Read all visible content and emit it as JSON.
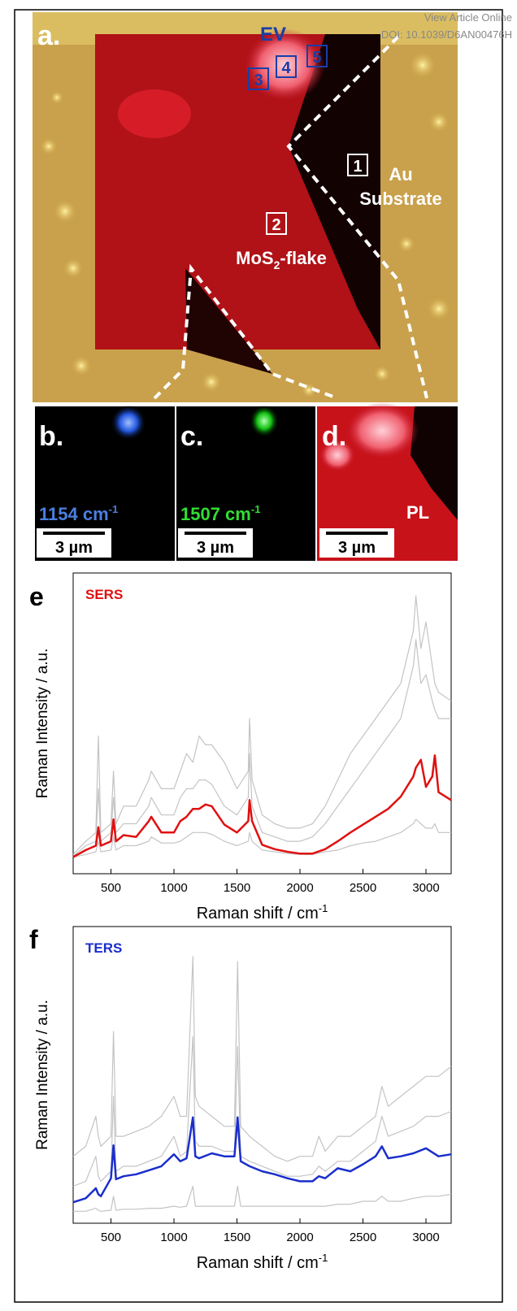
{
  "header": {
    "link": "View Article Online",
    "doi": "DOI: 10.1039/D6AN00476H"
  },
  "panel_a": {
    "label": "a.",
    "ev": "EV",
    "boxes": [
      "1",
      "2",
      "3",
      "4",
      "5"
    ],
    "au": "Au",
    "substrate": "Substrate",
    "flake": [
      "MoS",
      "2",
      "-flake"
    ]
  },
  "panels": [
    {
      "label": "b.",
      "band": "1154 cm",
      "sup": "-1",
      "scale": "3 µm"
    },
    {
      "label": "c.",
      "band": "1507 cm",
      "sup": "-1",
      "scale": "3 µm"
    },
    {
      "label": "d.",
      "band": "PL",
      "scale": "3 µm"
    }
  ],
  "chart_data": [
    {
      "type": "line",
      "panel": "e",
      "label": "SERS",
      "label_color": "#e01010",
      "ylabel": "Raman Intensity / a.u.",
      "xlabel": "Raman shift / cm",
      "xlabel_sup": "-1",
      "xlim": [
        200,
        3200
      ],
      "ylim": [
        -0.17,
        3.26
      ],
      "xticks": [
        500,
        1000,
        1500,
        2000,
        2500,
        3000
      ],
      "x": [
        200,
        300,
        380,
        400,
        420,
        500,
        520,
        540,
        600,
        700,
        800,
        820,
        900,
        1000,
        1050,
        1100,
        1150,
        1200,
        1250,
        1300,
        1400,
        1500,
        1590,
        1600,
        1620,
        1700,
        1800,
        1900,
        2000,
        2100,
        2200,
        2300,
        2400,
        2500,
        2600,
        2700,
        2800,
        2900,
        2920,
        2960,
        3000,
        3050,
        3070,
        3100,
        3200
      ],
      "series": [
        {
          "color": "#c4c4c4",
          "values": [
            0.05,
            0.2,
            0.3,
            1.4,
            0.3,
            0.4,
            1.0,
            0.4,
            0.6,
            0.6,
            0.9,
            1.0,
            0.8,
            0.8,
            1.0,
            1.2,
            1.1,
            1.4,
            1.3,
            1.3,
            1.1,
            0.8,
            1.0,
            1.6,
            0.9,
            0.5,
            0.4,
            0.35,
            0.35,
            0.4,
            0.6,
            0.9,
            1.2,
            1.4,
            1.6,
            1.8,
            2.0,
            2.6,
            3.0,
            2.4,
            2.7,
            2.2,
            2.0,
            1.9,
            1.8
          ]
        },
        {
          "color": "#c4c4c4",
          "values": [
            0.03,
            0.15,
            0.2,
            0.8,
            0.2,
            0.3,
            0.7,
            0.3,
            0.4,
            0.4,
            0.6,
            0.7,
            0.5,
            0.5,
            0.7,
            0.8,
            0.8,
            0.9,
            0.9,
            0.85,
            0.6,
            0.5,
            0.7,
            1.2,
            0.6,
            0.3,
            0.25,
            0.2,
            0.2,
            0.25,
            0.4,
            0.6,
            0.8,
            1.0,
            1.2,
            1.4,
            1.6,
            2.2,
            2.5,
            2.0,
            2.1,
            1.8,
            1.7,
            1.6,
            1.6
          ]
        },
        {
          "color": "#c4c4c4",
          "values": [
            0.02,
            0.05,
            0.08,
            0.2,
            0.08,
            0.1,
            0.25,
            0.1,
            0.15,
            0.15,
            0.2,
            0.25,
            0.18,
            0.18,
            0.2,
            0.25,
            0.3,
            0.3,
            0.3,
            0.28,
            0.2,
            0.15,
            0.2,
            0.3,
            0.2,
            0.1,
            0.08,
            0.06,
            0.05,
            0.05,
            0.08,
            0.1,
            0.15,
            0.18,
            0.2,
            0.25,
            0.3,
            0.4,
            0.45,
            0.4,
            0.35,
            0.35,
            0.4,
            0.3,
            0.3
          ]
        },
        {
          "color": "#e01010",
          "values": [
            0.02,
            0.1,
            0.15,
            0.36,
            0.15,
            0.2,
            0.45,
            0.2,
            0.27,
            0.25,
            0.43,
            0.48,
            0.3,
            0.3,
            0.43,
            0.48,
            0.57,
            0.57,
            0.62,
            0.6,
            0.39,
            0.3,
            0.43,
            0.67,
            0.43,
            0.16,
            0.11,
            0.08,
            0.06,
            0.06,
            0.11,
            0.2,
            0.3,
            0.39,
            0.48,
            0.57,
            0.71,
            0.94,
            1.04,
            1.13,
            0.82,
            0.94,
            1.18,
            0.76,
            0.67
          ]
        }
      ]
    },
    {
      "type": "line",
      "panel": "f",
      "label": "TERS",
      "label_color": "#1a2ecc",
      "ylabel": "Raman Intensity / a.u.",
      "xlabel": "Raman shift / cm",
      "xlabel_sup": "-1",
      "xlim": [
        200,
        3200
      ],
      "ylim": [
        -0.07,
        2.9
      ],
      "xticks": [
        500,
        1000,
        1500,
        2000,
        2500,
        3000
      ],
      "x": [
        200,
        300,
        380,
        400,
        420,
        500,
        520,
        540,
        600,
        700,
        800,
        900,
        1000,
        1050,
        1100,
        1150,
        1170,
        1200,
        1300,
        1400,
        1480,
        1505,
        1530,
        1600,
        1700,
        1800,
        1900,
        2000,
        2100,
        2150,
        2200,
        2300,
        2400,
        2500,
        2600,
        2650,
        2700,
        2800,
        2900,
        3000,
        3100,
        3200
      ],
      "series": [
        {
          "color": "#c4c4c4",
          "values": [
            0.6,
            0.7,
            1.0,
            0.8,
            0.7,
            0.8,
            1.85,
            0.8,
            0.8,
            0.85,
            0.9,
            1.0,
            1.2,
            1.0,
            1.0,
            2.6,
            1.2,
            1.1,
            1.0,
            0.9,
            0.9,
            2.55,
            0.9,
            0.8,
            0.7,
            0.6,
            0.55,
            0.6,
            0.6,
            0.8,
            0.65,
            0.8,
            0.8,
            0.9,
            1.0,
            1.3,
            1.1,
            1.2,
            1.3,
            1.4,
            1.4,
            1.5
          ]
        },
        {
          "color": "#c4c4c4",
          "values": [
            0.3,
            0.35,
            0.6,
            0.4,
            0.35,
            0.45,
            1.2,
            0.45,
            0.5,
            0.5,
            0.55,
            0.6,
            0.8,
            0.6,
            0.65,
            1.8,
            0.75,
            0.7,
            0.7,
            0.65,
            0.65,
            1.7,
            0.6,
            0.55,
            0.5,
            0.45,
            0.4,
            0.4,
            0.42,
            0.5,
            0.45,
            0.55,
            0.55,
            0.65,
            0.75,
            1.0,
            0.8,
            0.85,
            0.9,
            1.0,
            1.0,
            1.05
          ]
        },
        {
          "color": "#c4c4c4",
          "values": [
            0.05,
            0.05,
            0.08,
            0.06,
            0.05,
            0.06,
            0.2,
            0.06,
            0.07,
            0.07,
            0.08,
            0.08,
            0.1,
            0.09,
            0.1,
            0.3,
            0.1,
            0.1,
            0.1,
            0.1,
            0.1,
            0.3,
            0.1,
            0.1,
            0.1,
            0.1,
            0.1,
            0.1,
            0.1,
            0.1,
            0.1,
            0.12,
            0.12,
            0.15,
            0.15,
            0.2,
            0.15,
            0.15,
            0.18,
            0.2,
            0.2,
            0.22
          ]
        },
        {
          "color": "#1a2ecc",
          "values": [
            0.14,
            0.18,
            0.28,
            0.22,
            0.2,
            0.38,
            0.71,
            0.37,
            0.4,
            0.42,
            0.46,
            0.5,
            0.62,
            0.55,
            0.58,
            0.99,
            0.6,
            0.58,
            0.63,
            0.6,
            0.6,
            0.99,
            0.55,
            0.5,
            0.45,
            0.42,
            0.38,
            0.35,
            0.35,
            0.4,
            0.38,
            0.48,
            0.45,
            0.52,
            0.6,
            0.7,
            0.58,
            0.6,
            0.63,
            0.68,
            0.6,
            0.62
          ]
        }
      ]
    }
  ]
}
